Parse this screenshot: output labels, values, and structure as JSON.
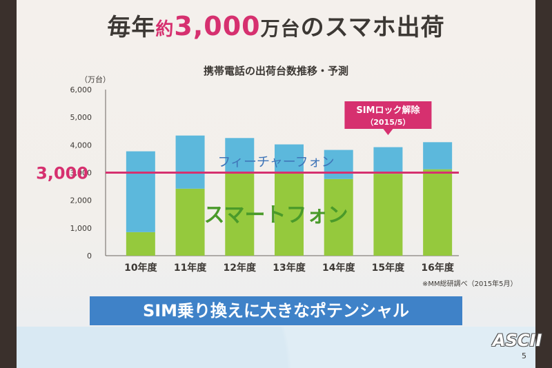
{
  "slide": {
    "title_parts": [
      "毎年",
      "約",
      "3,000",
      "万台",
      "のスマホ出荷"
    ],
    "subtitle": "携帯電話の出荷台数推移・予測",
    "unit": "（万台）",
    "source": "※MM総研調べ（2015年5月）",
    "banner": "SIM乗り換えに大きなポテンシャル",
    "logo": "ASCII",
    "page_number": "5"
  },
  "chart_data": {
    "type": "bar",
    "stacked": true,
    "categories": [
      "10年度",
      "11年度",
      "12年度",
      "13年度",
      "14年度",
      "15年度",
      "16年度"
    ],
    "series": [
      {
        "name": "スマートフォン",
        "values": [
          850,
          2420,
          3000,
          3020,
          2770,
          2960,
          3120
        ],
        "color": "#95c93d"
      },
      {
        "name": "フィーチャーフォン",
        "values": [
          2920,
          1920,
          1250,
          1000,
          1050,
          960,
          980
        ],
        "color": "#5cb8dc"
      }
    ],
    "yticks": [
      0,
      1000,
      2000,
      3000,
      4000,
      5000,
      6000
    ],
    "ytick_labels": [
      "0",
      "1,000",
      "2,000",
      "3,000",
      "4,000",
      "5,000",
      "6,000"
    ],
    "ylim": [
      0,
      6000
    ],
    "reference_line": {
      "value": 3000,
      "label": "3,000",
      "color": "#d6306f"
    },
    "annotation": {
      "line1": "SIMロック解除",
      "line2": "（2015/5）",
      "category": "15年度",
      "color": "#d6306f"
    }
  }
}
